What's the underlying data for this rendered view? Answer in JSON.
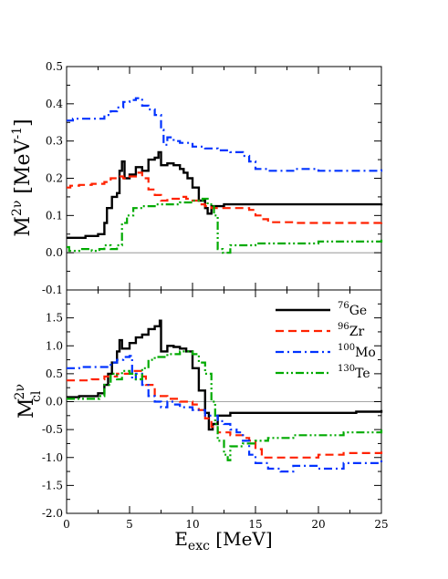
{
  "chart_data": [
    {
      "type": "line",
      "ylabel": "M",
      "ylabel_sup": "2ν",
      "ylabel_unit": " [MeV",
      "ylabel_unit_sup": "-1",
      "ylabel_unit_end": "]",
      "xlim": [
        0,
        25
      ],
      "ylim": [
        -0.1,
        0.5
      ],
      "yticks": [
        "-0.1",
        "0.0",
        "0.1",
        "0.2",
        "0.3",
        "0.4",
        "0.5"
      ],
      "ytick_values": [
        -0.1,
        0.0,
        0.1,
        0.2,
        0.3,
        0.4,
        0.5
      ],
      "xticks": [
        0,
        5,
        10,
        15,
        20,
        25
      ],
      "zero_line": true,
      "series": [
        {
          "key": "ge",
          "color": "#000000",
          "dash": "",
          "width": 2.4,
          "points": [
            [
              0,
              0.04
            ],
            [
              0.5,
              0.04
            ],
            [
              1.5,
              0.045
            ],
            [
              2.5,
              0.05
            ],
            [
              3,
              0.08
            ],
            [
              3.2,
              0.12
            ],
            [
              3.6,
              0.15
            ],
            [
              4,
              0.16
            ],
            [
              4.2,
              0.22
            ],
            [
              4.4,
              0.245
            ],
            [
              4.6,
              0.2
            ],
            [
              5,
              0.21
            ],
            [
              5.5,
              0.23
            ],
            [
              6,
              0.22
            ],
            [
              6.5,
              0.25
            ],
            [
              7,
              0.255
            ],
            [
              7.3,
              0.27
            ],
            [
              7.5,
              0.235
            ],
            [
              8,
              0.24
            ],
            [
              8.5,
              0.235
            ],
            [
              9,
              0.225
            ],
            [
              9.3,
              0.215
            ],
            [
              9.6,
              0.2
            ],
            [
              10,
              0.175
            ],
            [
              10.5,
              0.14
            ],
            [
              11,
              0.12
            ],
            [
              11.2,
              0.105
            ],
            [
              11.5,
              0.125
            ],
            [
              12.5,
              0.13
            ],
            [
              15,
              0.13
            ],
            [
              20,
              0.13
            ],
            [
              25,
              0.132
            ]
          ]
        },
        {
          "key": "zr",
          "color": "#ff2200",
          "dash": "9,5",
          "width": 2.2,
          "points": [
            [
              0,
              0.175
            ],
            [
              0.3,
              0.18
            ],
            [
              1,
              0.182
            ],
            [
              2,
              0.185
            ],
            [
              3,
              0.19
            ],
            [
              3.5,
              0.2
            ],
            [
              4,
              0.205
            ],
            [
              4.5,
              0.2
            ],
            [
              5,
              0.205
            ],
            [
              5.5,
              0.215
            ],
            [
              6,
              0.2
            ],
            [
              6.5,
              0.17
            ],
            [
              7,
              0.155
            ],
            [
              7.5,
              0.14
            ],
            [
              8,
              0.145
            ],
            [
              9,
              0.15
            ],
            [
              9.5,
              0.145
            ],
            [
              10,
              0.14
            ],
            [
              10.5,
              0.13
            ],
            [
              11,
              0.125
            ],
            [
              11.5,
              0.12
            ],
            [
              12.5,
              0.12
            ],
            [
              14,
              0.12
            ],
            [
              14.5,
              0.115
            ],
            [
              15,
              0.1
            ],
            [
              15.5,
              0.09
            ],
            [
              16,
              0.082
            ],
            [
              18,
              0.08
            ],
            [
              20,
              0.08
            ],
            [
              25,
              0.088
            ]
          ]
        },
        {
          "key": "mo",
          "color": "#0033ff",
          "dash": "9,4,2,4",
          "width": 2.2,
          "points": [
            [
              0,
              0.355
            ],
            [
              0.5,
              0.36
            ],
            [
              2,
              0.36
            ],
            [
              3,
              0.37
            ],
            [
              3.5,
              0.38
            ],
            [
              4,
              0.39
            ],
            [
              4.5,
              0.405
            ],
            [
              5,
              0.41
            ],
            [
              5.5,
              0.415
            ],
            [
              6,
              0.395
            ],
            [
              6.5,
              0.385
            ],
            [
              7,
              0.37
            ],
            [
              7.5,
              0.33
            ],
            [
              7.7,
              0.29
            ],
            [
              8,
              0.31
            ],
            [
              8.5,
              0.3
            ],
            [
              9,
              0.295
            ],
            [
              10,
              0.285
            ],
            [
              11,
              0.28
            ],
            [
              12,
              0.275
            ],
            [
              13,
              0.27
            ],
            [
              14,
              0.26
            ],
            [
              14.5,
              0.245
            ],
            [
              15,
              0.225
            ],
            [
              16,
              0.22
            ],
            [
              17,
              0.22
            ],
            [
              18,
              0.225
            ],
            [
              20,
              0.22
            ],
            [
              22,
              0.22
            ],
            [
              25,
              0.228
            ]
          ]
        },
        {
          "key": "te",
          "color": "#00aa00",
          "dash": "9,3,2,3,2,3",
          "width": 2.2,
          "points": [
            [
              0,
              0.015
            ],
            [
              0.2,
              0.005
            ],
            [
              1,
              0.01
            ],
            [
              2,
              0.005
            ],
            [
              2.6,
              0.01
            ],
            [
              3,
              0.02
            ],
            [
              3.5,
              0.01
            ],
            [
              4,
              0.02
            ],
            [
              4.4,
              0.08
            ],
            [
              4.8,
              0.1
            ],
            [
              5.3,
              0.12
            ],
            [
              6,
              0.125
            ],
            [
              7,
              0.13
            ],
            [
              8,
              0.13
            ],
            [
              9,
              0.135
            ],
            [
              10,
              0.14
            ],
            [
              10.8,
              0.145
            ],
            [
              11.2,
              0.13
            ],
            [
              11.7,
              0.1
            ],
            [
              12,
              0.01
            ],
            [
              12.4,
              0.0
            ],
            [
              12.7,
              0.0
            ],
            [
              13,
              0.02
            ],
            [
              15,
              0.025
            ],
            [
              20,
              0.03
            ],
            [
              25,
              0.035
            ]
          ]
        }
      ]
    },
    {
      "type": "line",
      "ylabel": "M",
      "ylabel_sup": "2ν",
      "ylabel_sub": "cl",
      "xlabel": "E",
      "xlabel_sub": "exc",
      "xlabel_unit": " [MeV]",
      "xlim": [
        0,
        25
      ],
      "ylim": [
        -2.0,
        2.0
      ],
      "yticks": [
        "-2.0",
        "-1.5",
        "-1.0",
        "-0.5",
        "0.0",
        "0.5",
        "1.0",
        "1.5"
      ],
      "ytick_values": [
        -2.0,
        -1.5,
        -1.0,
        -0.5,
        0.0,
        0.5,
        1.0,
        1.5
      ],
      "xticks": [
        0,
        5,
        10,
        15,
        20,
        25
      ],
      "xtick_labels": [
        "0",
        "5",
        "10",
        "15",
        "20",
        "25"
      ],
      "zero_line": true,
      "legend_position": "top-right",
      "legend": [
        {
          "key": "ge",
          "sup": "76",
          "name": "Ge"
        },
        {
          "key": "zr",
          "sup": "96",
          "name": "Zr"
        },
        {
          "key": "mo",
          "sup": "100",
          "name": "Mo"
        },
        {
          "key": "te",
          "sup": "130",
          "name": "Te"
        }
      ],
      "series": [
        {
          "key": "ge",
          "color": "#000000",
          "dash": "",
          "width": 2.4,
          "points": [
            [
              0,
              0.08
            ],
            [
              1,
              0.1
            ],
            [
              2,
              0.1
            ],
            [
              2.5,
              0.15
            ],
            [
              3,
              0.3
            ],
            [
              3.3,
              0.5
            ],
            [
              3.6,
              0.7
            ],
            [
              4,
              0.9
            ],
            [
              4.2,
              1.1
            ],
            [
              4.4,
              0.95
            ],
            [
              5,
              1.05
            ],
            [
              5.5,
              1.15
            ],
            [
              6,
              1.2
            ],
            [
              6.5,
              1.3
            ],
            [
              7,
              1.35
            ],
            [
              7.4,
              1.45
            ],
            [
              7.5,
              0.9
            ],
            [
              8,
              1.0
            ],
            [
              8.5,
              0.98
            ],
            [
              9,
              0.95
            ],
            [
              9.5,
              0.9
            ],
            [
              10,
              0.6
            ],
            [
              10.5,
              0.2
            ],
            [
              11,
              -0.2
            ],
            [
              11.3,
              -0.5
            ],
            [
              11.6,
              -0.4
            ],
            [
              12,
              -0.25
            ],
            [
              13,
              -0.2
            ],
            [
              15,
              -0.2
            ],
            [
              20,
              -0.2
            ],
            [
              23,
              -0.18
            ],
            [
              25,
              -0.15
            ]
          ]
        },
        {
          "key": "zr",
          "color": "#ff2200",
          "dash": "9,5",
          "width": 2.2,
          "points": [
            [
              0,
              0.38
            ],
            [
              1,
              0.38
            ],
            [
              2,
              0.4
            ],
            [
              3,
              0.45
            ],
            [
              4,
              0.5
            ],
            [
              5,
              0.55
            ],
            [
              5.5,
              0.55
            ],
            [
              6,
              0.45
            ],
            [
              6.3,
              0.3
            ],
            [
              7,
              0.1
            ],
            [
              8,
              0.05
            ],
            [
              9,
              0.0
            ],
            [
              10,
              -0.05
            ],
            [
              10.5,
              -0.15
            ],
            [
              11,
              -0.3
            ],
            [
              11.5,
              -0.45
            ],
            [
              12,
              -0.55
            ],
            [
              13,
              -0.6
            ],
            [
              14,
              -0.65
            ],
            [
              14.5,
              -0.7
            ],
            [
              15,
              -0.85
            ],
            [
              15.5,
              -1.0
            ],
            [
              16,
              -1.0
            ],
            [
              20,
              -0.95
            ],
            [
              22,
              -0.92
            ],
            [
              25,
              -0.85
            ]
          ]
        },
        {
          "key": "mo",
          "color": "#0033ff",
          "dash": "9,4,2,4",
          "width": 2.2,
          "points": [
            [
              0,
              0.6
            ],
            [
              1,
              0.62
            ],
            [
              2,
              0.62
            ],
            [
              3,
              0.62
            ],
            [
              3.5,
              0.7
            ],
            [
              4,
              0.75
            ],
            [
              4.5,
              0.8
            ],
            [
              5,
              0.82
            ],
            [
              5.2,
              0.4
            ],
            [
              5.5,
              0.5
            ],
            [
              6,
              0.3
            ],
            [
              6.5,
              0.1
            ],
            [
              7,
              0.0
            ],
            [
              7.5,
              -0.1
            ],
            [
              8,
              0.0
            ],
            [
              8.5,
              -0.05
            ],
            [
              9,
              -0.1
            ],
            [
              10,
              -0.15
            ],
            [
              11,
              -0.25
            ],
            [
              12,
              -0.35
            ],
            [
              12.5,
              -0.4
            ],
            [
              13,
              -0.5
            ],
            [
              13.5,
              -0.55
            ],
            [
              14,
              -0.7
            ],
            [
              14.5,
              -0.95
            ],
            [
              15,
              -1.1
            ],
            [
              16,
              -1.2
            ],
            [
              17,
              -1.25
            ],
            [
              18,
              -1.15
            ],
            [
              20,
              -1.2
            ],
            [
              22,
              -1.1
            ],
            [
              25,
              -1.0
            ]
          ]
        },
        {
          "key": "te",
          "color": "#00aa00",
          "dash": "9,3,2,3,2,3",
          "width": 2.2,
          "points": [
            [
              0,
              0.05
            ],
            [
              2,
              0.05
            ],
            [
              2.6,
              0.1
            ],
            [
              3,
              0.3
            ],
            [
              3.5,
              0.5
            ],
            [
              4,
              0.4
            ],
            [
              4.4,
              0.55
            ],
            [
              5,
              0.5
            ],
            [
              5.5,
              0.4
            ],
            [
              6,
              0.6
            ],
            [
              6.5,
              0.75
            ],
            [
              7,
              0.8
            ],
            [
              8,
              0.85
            ],
            [
              9,
              0.9
            ],
            [
              10,
              0.85
            ],
            [
              10.5,
              0.7
            ],
            [
              11,
              0.5
            ],
            [
              11.5,
              0.0
            ],
            [
              11.8,
              -0.4
            ],
            [
              12,
              -0.7
            ],
            [
              12.5,
              -0.95
            ],
            [
              12.8,
              -1.05
            ],
            [
              13,
              -0.8
            ],
            [
              14,
              -0.75
            ],
            [
              15,
              -0.7
            ],
            [
              16,
              -0.65
            ],
            [
              18,
              -0.6
            ],
            [
              20,
              -0.6
            ],
            [
              22,
              -0.55
            ],
            [
              25,
              -0.5
            ]
          ]
        }
      ]
    }
  ]
}
